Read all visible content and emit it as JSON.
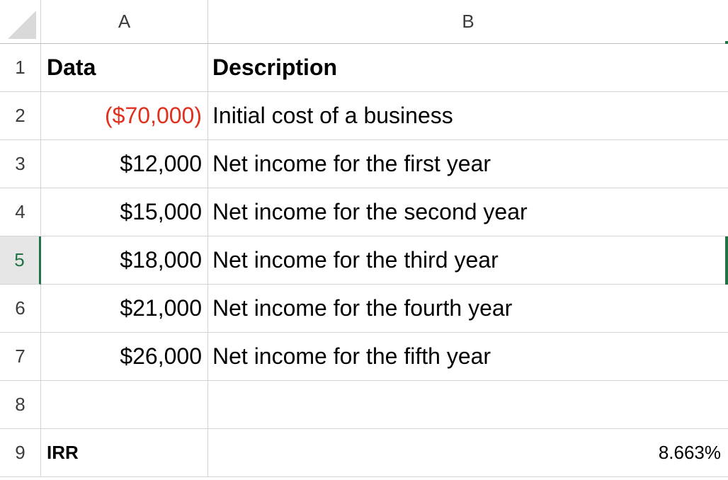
{
  "columns": [
    "A",
    "B"
  ],
  "rows": [
    {
      "num": "1",
      "a": "Data",
      "b": "Description"
    },
    {
      "num": "2",
      "a": "($70,000)",
      "b": "Initial cost of a business"
    },
    {
      "num": "3",
      "a": "$12,000",
      "b": "Net income for the first year"
    },
    {
      "num": "4",
      "a": "$15,000",
      "b": "Net income for the second year"
    },
    {
      "num": "5",
      "a": "$18,000",
      "b": "Net income for the third year"
    },
    {
      "num": "6",
      "a": "$21,000",
      "b": "Net income for the fourth year"
    },
    {
      "num": "7",
      "a": "$26,000",
      "b": "Net income for the fifth year"
    },
    {
      "num": "8",
      "a": "",
      "b": ""
    },
    {
      "num": "9",
      "a": "IRR",
      "b": "8.663%"
    }
  ],
  "active_row": "5",
  "colors": {
    "negative": "#e0301e",
    "selection": "#217346",
    "gridline": "#d4d4d4"
  }
}
